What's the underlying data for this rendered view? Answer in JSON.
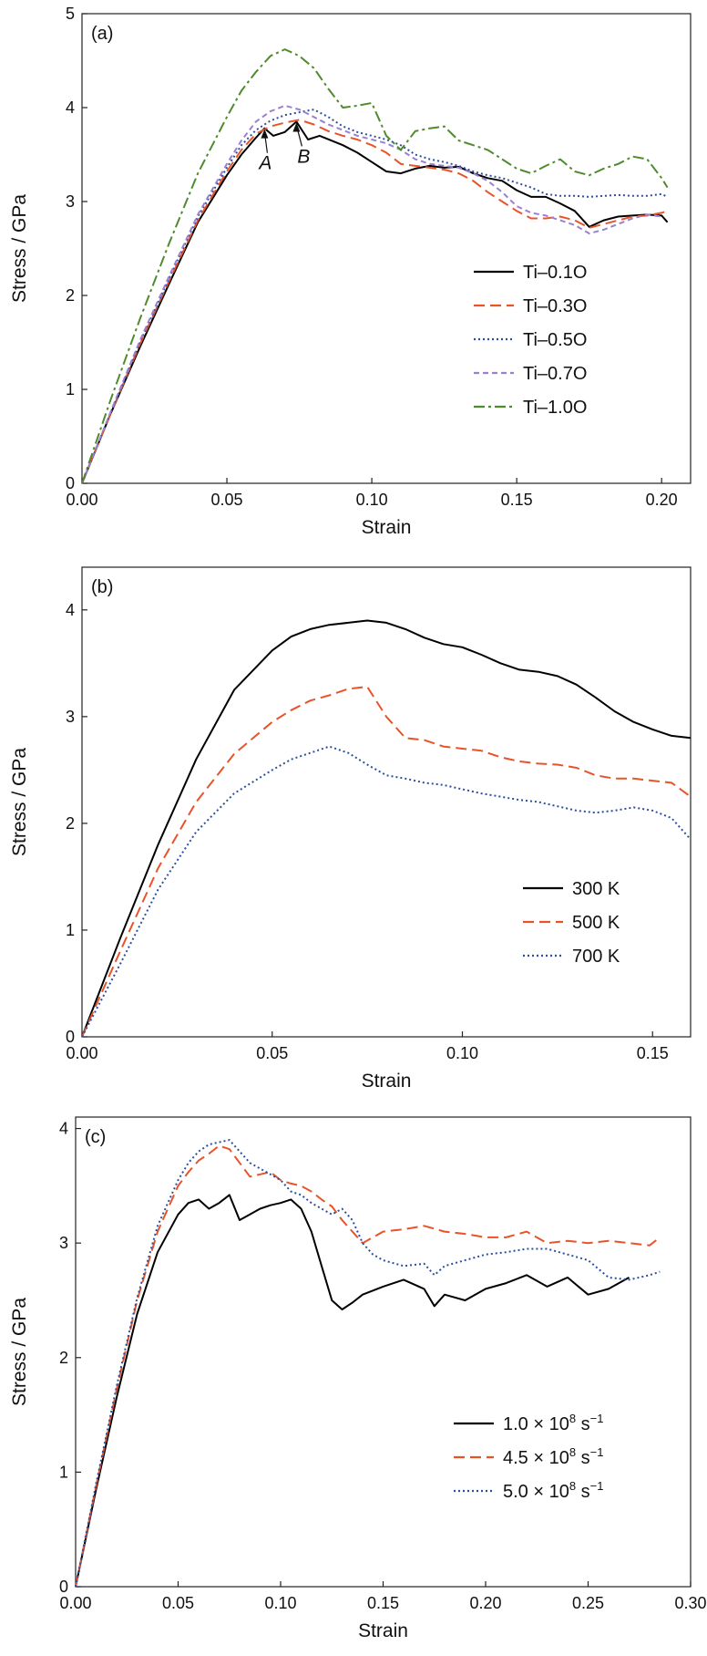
{
  "figure": {
    "colors": {
      "black": "#000000",
      "red": "#e8542a",
      "blue": "#2b4fa0",
      "purple": "#9b7fd0",
      "green": "#4f8a2e"
    }
  },
  "chart_data": [
    {
      "type": "line",
      "panel_label": "(a)",
      "xlabel": "Strain",
      "ylabel": "Stress / GPa",
      "xlim": [
        0,
        0.21
      ],
      "ylim": [
        0,
        5
      ],
      "xticks": [
        0,
        0.05,
        0.1,
        0.15,
        0.2
      ],
      "xtick_labels": [
        "0.00",
        "0.05",
        "0.10",
        "0.15",
        "0.20"
      ],
      "yticks": [
        0,
        1,
        2,
        3,
        4,
        5
      ],
      "ytick_labels": [
        "0",
        "1",
        "2",
        "3",
        "4",
        "5"
      ],
      "legend_position": "right-middle",
      "annotations": [
        {
          "text": "A",
          "x": 0.063,
          "y": 3.78
        },
        {
          "text": "B",
          "x": 0.074,
          "y": 3.85
        }
      ],
      "series": [
        {
          "name": "Ti–0.1O",
          "color": "#000000",
          "dash": "solid",
          "x": [
            0,
            0.01,
            0.02,
            0.03,
            0.04,
            0.05,
            0.055,
            0.06,
            0.063,
            0.066,
            0.07,
            0.074,
            0.078,
            0.082,
            0.086,
            0.09,
            0.095,
            0.1,
            0.105,
            0.11,
            0.115,
            0.12,
            0.125,
            0.13,
            0.135,
            0.14,
            0.145,
            0.15,
            0.155,
            0.16,
            0.165,
            0.17,
            0.175,
            0.18,
            0.185,
            0.19,
            0.195,
            0.2,
            0.202
          ],
          "y": [
            0,
            0.75,
            1.45,
            2.12,
            2.78,
            3.28,
            3.5,
            3.68,
            3.78,
            3.7,
            3.74,
            3.85,
            3.66,
            3.7,
            3.65,
            3.6,
            3.52,
            3.42,
            3.32,
            3.3,
            3.35,
            3.38,
            3.36,
            3.37,
            3.3,
            3.25,
            3.22,
            3.12,
            3.05,
            3.05,
            2.98,
            2.9,
            2.73,
            2.8,
            2.84,
            2.85,
            2.86,
            2.85,
            2.78
          ]
        },
        {
          "name": "Ti–0.3O",
          "color": "#e8542a",
          "dash": "dashed",
          "x": [
            0,
            0.01,
            0.02,
            0.03,
            0.04,
            0.05,
            0.055,
            0.06,
            0.065,
            0.07,
            0.075,
            0.08,
            0.085,
            0.09,
            0.095,
            0.1,
            0.105,
            0.11,
            0.115,
            0.12,
            0.125,
            0.13,
            0.135,
            0.14,
            0.145,
            0.15,
            0.155,
            0.16,
            0.165,
            0.17,
            0.175,
            0.18,
            0.185,
            0.19,
            0.195,
            0.2,
            0.202
          ],
          "y": [
            0,
            0.75,
            1.48,
            2.15,
            2.8,
            3.32,
            3.55,
            3.72,
            3.8,
            3.84,
            3.87,
            3.82,
            3.75,
            3.7,
            3.66,
            3.6,
            3.52,
            3.4,
            3.38,
            3.36,
            3.34,
            3.3,
            3.22,
            3.1,
            3.0,
            2.9,
            2.82,
            2.82,
            2.84,
            2.8,
            2.72,
            2.76,
            2.8,
            2.84,
            2.85,
            2.88,
            2.9
          ]
        },
        {
          "name": "Ti–0.5O",
          "color": "#2b4fa0",
          "dash": "dotted",
          "x": [
            0,
            0.01,
            0.02,
            0.03,
            0.04,
            0.05,
            0.055,
            0.06,
            0.065,
            0.07,
            0.075,
            0.08,
            0.085,
            0.09,
            0.095,
            0.1,
            0.105,
            0.11,
            0.115,
            0.12,
            0.125,
            0.13,
            0.135,
            0.14,
            0.145,
            0.15,
            0.155,
            0.16,
            0.165,
            0.17,
            0.175,
            0.18,
            0.185,
            0.19,
            0.195,
            0.2,
            0.202
          ],
          "y": [
            0,
            0.76,
            1.5,
            2.18,
            2.84,
            3.36,
            3.6,
            3.76,
            3.86,
            3.92,
            3.95,
            3.98,
            3.9,
            3.8,
            3.74,
            3.7,
            3.66,
            3.6,
            3.5,
            3.45,
            3.42,
            3.38,
            3.32,
            3.28,
            3.25,
            3.2,
            3.15,
            3.08,
            3.06,
            3.06,
            3.05,
            3.06,
            3.07,
            3.06,
            3.06,
            3.08,
            3.05
          ]
        },
        {
          "name": "Ti–0.7O",
          "color": "#9b7fd0",
          "dash": "shortdash",
          "x": [
            0,
            0.01,
            0.02,
            0.03,
            0.04,
            0.05,
            0.055,
            0.06,
            0.065,
            0.07,
            0.075,
            0.08,
            0.085,
            0.09,
            0.095,
            0.1,
            0.105,
            0.11,
            0.115,
            0.12,
            0.125,
            0.13,
            0.135,
            0.14,
            0.145,
            0.15,
            0.155,
            0.16,
            0.165,
            0.17,
            0.175,
            0.18,
            0.185,
            0.19,
            0.195,
            0.2
          ],
          "y": [
            0,
            0.77,
            1.52,
            2.2,
            2.86,
            3.4,
            3.65,
            3.85,
            3.96,
            4.02,
            3.98,
            3.9,
            3.82,
            3.76,
            3.7,
            3.66,
            3.62,
            3.55,
            3.45,
            3.4,
            3.38,
            3.36,
            3.3,
            3.22,
            3.1,
            2.95,
            2.88,
            2.85,
            2.8,
            2.75,
            2.66,
            2.7,
            2.76,
            2.82,
            2.86,
            2.84
          ]
        },
        {
          "name": "Ti–1.0O",
          "color": "#4f8a2e",
          "dash": "dashdot",
          "x": [
            0,
            0.01,
            0.02,
            0.03,
            0.04,
            0.05,
            0.055,
            0.06,
            0.065,
            0.07,
            0.075,
            0.08,
            0.085,
            0.09,
            0.095,
            0.1,
            0.105,
            0.11,
            0.115,
            0.12,
            0.125,
            0.13,
            0.135,
            0.14,
            0.145,
            0.15,
            0.155,
            0.16,
            0.165,
            0.17,
            0.175,
            0.18,
            0.185,
            0.19,
            0.195,
            0.2,
            0.202
          ],
          "y": [
            0,
            0.9,
            1.75,
            2.55,
            3.3,
            3.9,
            4.18,
            4.38,
            4.55,
            4.62,
            4.55,
            4.42,
            4.2,
            4.0,
            4.02,
            4.05,
            3.7,
            3.55,
            3.75,
            3.78,
            3.8,
            3.65,
            3.6,
            3.55,
            3.45,
            3.35,
            3.3,
            3.38,
            3.45,
            3.32,
            3.28,
            3.35,
            3.4,
            3.48,
            3.45,
            3.25,
            3.15
          ]
        }
      ]
    },
    {
      "type": "line",
      "panel_label": "(b)",
      "xlabel": "Strain",
      "ylabel": "Stress / GPa",
      "xlim": [
        0,
        0.16
      ],
      "ylim": [
        0,
        4.4
      ],
      "xticks": [
        0,
        0.05,
        0.1,
        0.15
      ],
      "xtick_labels": [
        "0.00",
        "0.05",
        "0.10",
        "0.15"
      ],
      "yticks": [
        0,
        1,
        2,
        3,
        4
      ],
      "ytick_labels": [
        "0",
        "1",
        "2",
        "3",
        "4"
      ],
      "legend_position": "right-lower",
      "series": [
        {
          "name": "300 K",
          "color": "#000000",
          "dash": "solid",
          "x": [
            0,
            0.01,
            0.02,
            0.03,
            0.04,
            0.05,
            0.055,
            0.06,
            0.065,
            0.07,
            0.075,
            0.08,
            0.085,
            0.09,
            0.095,
            0.1,
            0.105,
            0.11,
            0.115,
            0.12,
            0.125,
            0.13,
            0.135,
            0.14,
            0.145,
            0.15,
            0.155,
            0.16
          ],
          "y": [
            0,
            0.92,
            1.8,
            2.6,
            3.25,
            3.62,
            3.75,
            3.82,
            3.86,
            3.88,
            3.9,
            3.88,
            3.82,
            3.74,
            3.68,
            3.65,
            3.58,
            3.5,
            3.44,
            3.42,
            3.38,
            3.3,
            3.18,
            3.05,
            2.95,
            2.88,
            2.82,
            2.8
          ]
        },
        {
          "name": "500 K",
          "color": "#e8542a",
          "dash": "dashed",
          "x": [
            0,
            0.01,
            0.02,
            0.03,
            0.04,
            0.05,
            0.055,
            0.06,
            0.065,
            0.07,
            0.075,
            0.08,
            0.085,
            0.09,
            0.095,
            0.1,
            0.105,
            0.11,
            0.115,
            0.12,
            0.125,
            0.13,
            0.135,
            0.14,
            0.145,
            0.15,
            0.155,
            0.16
          ],
          "y": [
            0,
            0.8,
            1.58,
            2.2,
            2.65,
            2.95,
            3.06,
            3.15,
            3.2,
            3.26,
            3.28,
            3.0,
            2.8,
            2.78,
            2.72,
            2.7,
            2.68,
            2.62,
            2.58,
            2.56,
            2.55,
            2.52,
            2.45,
            2.42,
            2.42,
            2.4,
            2.38,
            2.25
          ]
        },
        {
          "name": "700 K",
          "color": "#2b4fa0",
          "dash": "dotted",
          "x": [
            0,
            0.01,
            0.02,
            0.03,
            0.04,
            0.05,
            0.055,
            0.06,
            0.065,
            0.07,
            0.075,
            0.08,
            0.085,
            0.09,
            0.095,
            0.1,
            0.105,
            0.11,
            0.115,
            0.12,
            0.125,
            0.13,
            0.135,
            0.14,
            0.145,
            0.15,
            0.155,
            0.16
          ],
          "y": [
            0,
            0.68,
            1.38,
            1.92,
            2.28,
            2.5,
            2.6,
            2.66,
            2.72,
            2.66,
            2.55,
            2.45,
            2.42,
            2.38,
            2.36,
            2.32,
            2.28,
            2.25,
            2.22,
            2.2,
            2.16,
            2.12,
            2.1,
            2.12,
            2.15,
            2.12,
            2.05,
            1.85
          ]
        }
      ]
    },
    {
      "type": "line",
      "panel_label": "(c)",
      "xlabel": "Strain",
      "ylabel": "Stress / GPa",
      "xlim": [
        0,
        0.3
      ],
      "ylim": [
        0,
        4.1
      ],
      "xticks": [
        0,
        0.05,
        0.1,
        0.15,
        0.2,
        0.25,
        0.3
      ],
      "xtick_labels": [
        "0.00",
        "0.05",
        "0.10",
        "0.15",
        "0.20",
        "0.25",
        "0.30"
      ],
      "yticks": [
        0,
        1,
        2,
        3,
        4
      ],
      "ytick_labels": [
        "0",
        "1",
        "2",
        "3",
        "4"
      ],
      "legend_position": "right-lower",
      "series": [
        {
          "name": "1.0 × 10⁸ s⁻¹",
          "label_mantissa": "1.0 × 10",
          "label_exp": "8",
          "label_unit": " s",
          "label_unit_exp": "−1",
          "color": "#000000",
          "dash": "solid",
          "x": [
            0,
            0.01,
            0.02,
            0.03,
            0.04,
            0.05,
            0.055,
            0.06,
            0.065,
            0.07,
            0.075,
            0.08,
            0.085,
            0.09,
            0.095,
            0.1,
            0.105,
            0.11,
            0.115,
            0.12,
            0.125,
            0.13,
            0.135,
            0.14,
            0.15,
            0.16,
            0.17,
            0.175,
            0.18,
            0.19,
            0.2,
            0.21,
            0.22,
            0.23,
            0.24,
            0.25,
            0.26,
            0.27
          ],
          "y": [
            0,
            0.85,
            1.65,
            2.38,
            2.92,
            3.25,
            3.35,
            3.38,
            3.3,
            3.35,
            3.42,
            3.2,
            3.25,
            3.3,
            3.33,
            3.35,
            3.38,
            3.3,
            3.1,
            2.8,
            2.5,
            2.42,
            2.48,
            2.55,
            2.62,
            2.68,
            2.6,
            2.45,
            2.55,
            2.5,
            2.6,
            2.65,
            2.72,
            2.62,
            2.7,
            2.55,
            2.6,
            2.7
          ]
        },
        {
          "name": "4.5 × 10⁸ s⁻¹",
          "label_mantissa": "4.5 × 10",
          "label_exp": "8",
          "label_unit": " s",
          "label_unit_exp": "−1",
          "color": "#e8542a",
          "dash": "dashed",
          "x": [
            0,
            0.01,
            0.02,
            0.03,
            0.04,
            0.05,
            0.055,
            0.06,
            0.065,
            0.07,
            0.075,
            0.08,
            0.085,
            0.09,
            0.095,
            0.1,
            0.105,
            0.11,
            0.115,
            0.12,
            0.125,
            0.13,
            0.135,
            0.14,
            0.145,
            0.15,
            0.16,
            0.17,
            0.18,
            0.19,
            0.2,
            0.21,
            0.22,
            0.23,
            0.24,
            0.25,
            0.26,
            0.27,
            0.28,
            0.285
          ],
          "y": [
            0,
            0.88,
            1.72,
            2.5,
            3.1,
            3.5,
            3.62,
            3.72,
            3.78,
            3.85,
            3.82,
            3.7,
            3.58,
            3.6,
            3.62,
            3.55,
            3.52,
            3.5,
            3.45,
            3.38,
            3.32,
            3.2,
            3.1,
            3.0,
            3.05,
            3.1,
            3.12,
            3.15,
            3.1,
            3.08,
            3.05,
            3.05,
            3.1,
            3.0,
            3.02,
            3.0,
            3.02,
            3.0,
            2.98,
            3.05
          ]
        },
        {
          "name": "5.0 × 10⁸ s⁻¹",
          "label_mantissa": "5.0 × 10",
          "label_exp": "8",
          "label_unit": " s",
          "label_unit_exp": "−1",
          "color": "#2b4fa0",
          "dash": "dotted",
          "x": [
            0,
            0.01,
            0.02,
            0.03,
            0.04,
            0.05,
            0.055,
            0.06,
            0.065,
            0.07,
            0.075,
            0.08,
            0.085,
            0.09,
            0.095,
            0.1,
            0.105,
            0.11,
            0.115,
            0.12,
            0.125,
            0.13,
            0.135,
            0.14,
            0.145,
            0.15,
            0.16,
            0.17,
            0.175,
            0.18,
            0.19,
            0.2,
            0.21,
            0.22,
            0.23,
            0.24,
            0.25,
            0.26,
            0.27,
            0.28,
            0.285
          ],
          "y": [
            0,
            0.9,
            1.75,
            2.52,
            3.15,
            3.55,
            3.7,
            3.8,
            3.86,
            3.88,
            3.9,
            3.8,
            3.7,
            3.65,
            3.6,
            3.55,
            3.45,
            3.42,
            3.35,
            3.3,
            3.25,
            3.3,
            3.2,
            3.0,
            2.9,
            2.85,
            2.8,
            2.82,
            2.72,
            2.8,
            2.85,
            2.9,
            2.92,
            2.95,
            2.95,
            2.9,
            2.85,
            2.7,
            2.68,
            2.72,
            2.75
          ]
        }
      ]
    }
  ]
}
